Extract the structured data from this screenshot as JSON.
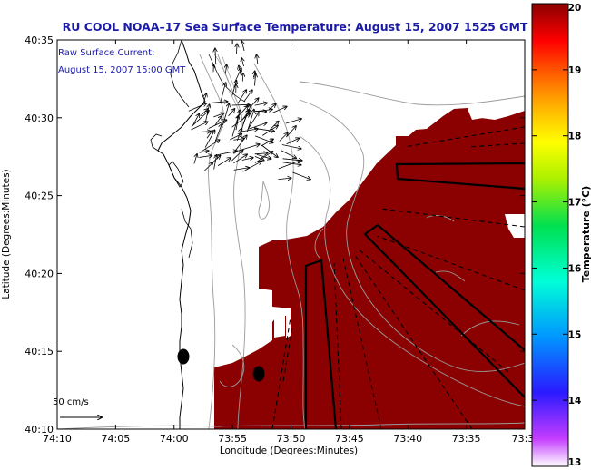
{
  "chart_data": {
    "type": "heatmap",
    "title": "RU COOL  NOAA–17  Sea Surface Temperature:  August 15, 2007 1525 GMT",
    "annotation": [
      "Raw Surface Current:",
      "August 15, 2007 15:00 GMT"
    ],
    "scale_label": "50 cm/s",
    "xlabel": "Longitude (Degrees:Minutes)",
    "ylabel": "Latitude (Degrees:Minutes)",
    "xticks": [
      "74:10",
      "74:05",
      "74:00",
      "73:55",
      "73:50",
      "73:45",
      "73:40",
      "73:35",
      "73:3"
    ],
    "yticks": [
      "40:10",
      "40:15",
      "40:20",
      "40:25",
      "40:30",
      "40:35"
    ],
    "colorbar": {
      "label": "Temperature (°C)",
      "ticks": [
        "13",
        "14",
        "15",
        "16",
        "17",
        "18",
        "19",
        "20"
      ],
      "range": [
        13,
        20
      ]
    },
    "field_temperature_c": 20,
    "colors": {
      "sst": "#8b0000",
      "title": "#1a1aa8",
      "coast": "#000000",
      "contour": "#9a9a9a"
    }
  }
}
